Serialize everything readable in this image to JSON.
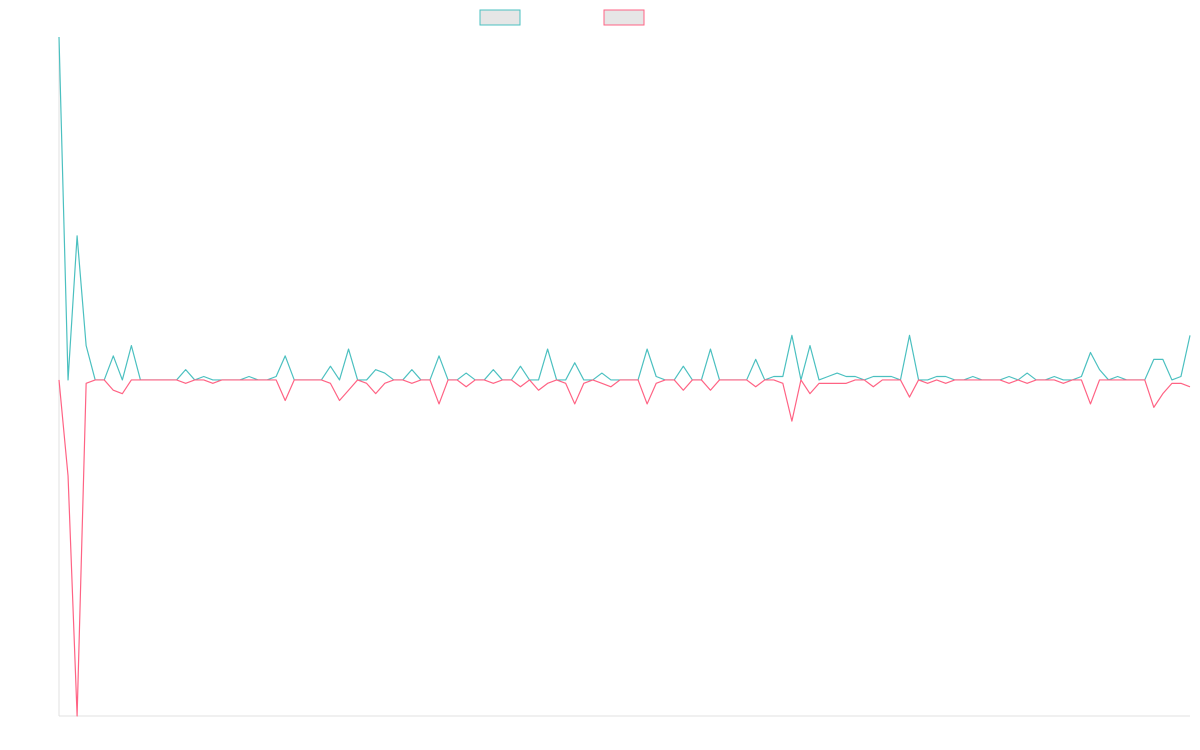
{
  "chart_data": {
    "type": "line",
    "x": [
      0,
      1,
      2,
      3,
      4,
      5,
      6,
      7,
      8,
      9,
      10,
      11,
      12,
      13,
      14,
      15,
      16,
      17,
      18,
      19,
      20,
      21,
      22,
      23,
      24,
      25,
      26,
      27,
      28,
      29,
      30,
      31,
      32,
      33,
      34,
      35,
      36,
      37,
      38,
      39,
      40,
      41,
      42,
      43,
      44,
      45,
      46,
      47,
      48,
      49,
      50,
      51,
      52,
      53,
      54,
      55,
      56,
      57,
      58,
      59,
      60,
      61,
      62,
      63,
      64,
      65,
      66,
      67,
      68,
      69,
      70,
      71,
      72,
      73,
      74,
      75,
      76,
      77,
      78,
      79,
      80,
      81,
      82,
      83,
      84,
      85,
      86,
      87,
      88,
      89,
      90,
      91,
      92,
      93,
      94,
      95,
      96,
      97,
      98,
      99,
      100,
      101,
      102,
      103,
      104,
      105,
      106,
      107,
      108,
      109,
      110,
      111,
      112,
      113,
      114,
      115,
      116,
      117,
      118,
      119,
      120,
      121,
      122,
      123,
      124,
      125
    ],
    "xlim": [
      0,
      125
    ],
    "ylim": [
      -98,
      100
    ],
    "series": [
      {
        "color": "#4bc0c0",
        "values": [
          100,
          0,
          42,
          10,
          0,
          0,
          7,
          0,
          10,
          0,
          0,
          0,
          0,
          0,
          3,
          0,
          1,
          0,
          0,
          0,
          0,
          1,
          0,
          0,
          1,
          7,
          0,
          0,
          0,
          0,
          4,
          0,
          9,
          0,
          0,
          3,
          2,
          0,
          0,
          3,
          0,
          0,
          7,
          0,
          0,
          2,
          0,
          0,
          3,
          0,
          0,
          4,
          0,
          0,
          9,
          0,
          0,
          5,
          0,
          0,
          2,
          0,
          0,
          0,
          0,
          9,
          1,
          0,
          0,
          4,
          0,
          0,
          9,
          0,
          0,
          0,
          0,
          6,
          0,
          1,
          1,
          13,
          0,
          10,
          0,
          1,
          2,
          1,
          1,
          0,
          1,
          1,
          1,
          0,
          13,
          0,
          0,
          1,
          1,
          0,
          0,
          1,
          0,
          0,
          0,
          1,
          0,
          2,
          0,
          0,
          1,
          0,
          0,
          1,
          8,
          3,
          0,
          1,
          0,
          0,
          0,
          6,
          6,
          0,
          1,
          13
        ]
      },
      {
        "color": "#ff6384",
        "values": [
          0,
          -28,
          -98,
          -1,
          0,
          0,
          -3,
          -4,
          0,
          0,
          0,
          0,
          0,
          0,
          -1,
          0,
          0,
          -1,
          0,
          0,
          0,
          0,
          0,
          0,
          0,
          -6,
          0,
          0,
          0,
          0,
          -1,
          -6,
          -3,
          0,
          -1,
          -4,
          -1,
          0,
          0,
          -1,
          0,
          0,
          -7,
          0,
          0,
          -2,
          0,
          0,
          -1,
          0,
          0,
          -2,
          0,
          -3,
          -1,
          0,
          -1,
          -7,
          -1,
          0,
          -1,
          -2,
          0,
          0,
          0,
          -7,
          -1,
          0,
          0,
          -3,
          0,
          0,
          -3,
          0,
          0,
          0,
          0,
          -2,
          0,
          0,
          -1,
          -12,
          0,
          -4,
          -1,
          -1,
          -1,
          -1,
          0,
          0,
          -2,
          0,
          0,
          0,
          -5,
          0,
          -1,
          0,
          -1,
          0,
          0,
          0,
          0,
          0,
          0,
          -1,
          0,
          -1,
          0,
          0,
          0,
          -1,
          0,
          0,
          -7,
          0,
          0,
          0,
          0,
          0,
          0,
          -8,
          -4,
          -1,
          -1,
          -2
        ]
      }
    ]
  }
}
